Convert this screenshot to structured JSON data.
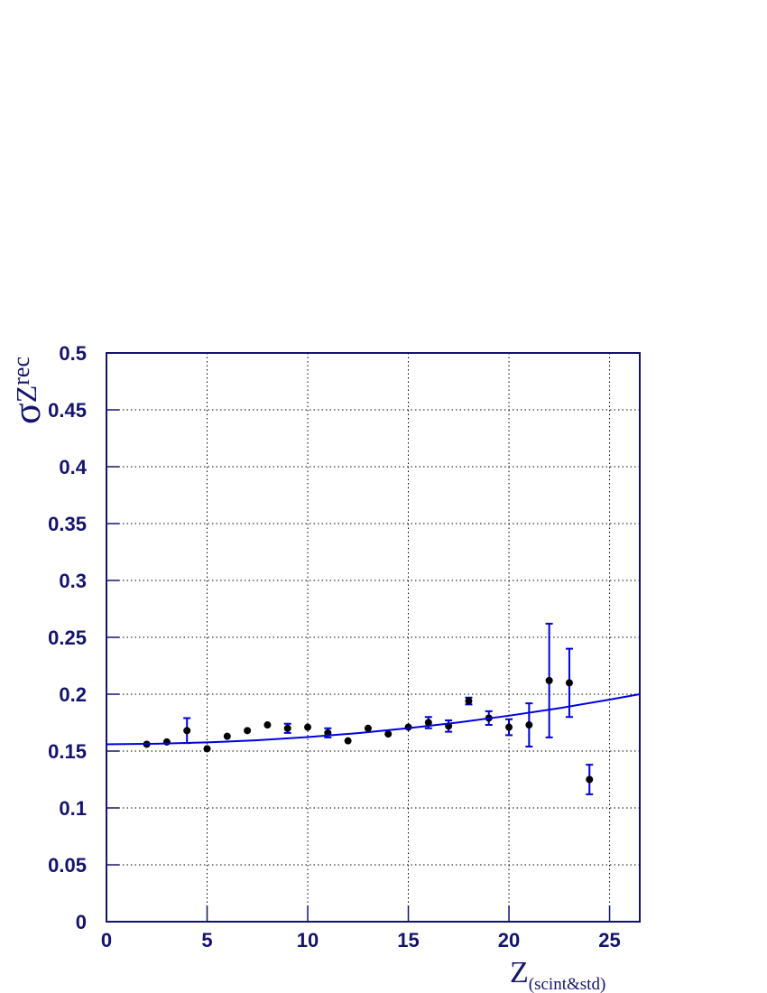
{
  "chart_data": {
    "type": "scatter",
    "xlabel": "Z",
    "xlabel_sub": "(scint&std)",
    "ylabel": "σ",
    "ylabel_sub": "Z",
    "ylabel_subsub": "rec",
    "xlim": [
      0,
      26.5
    ],
    "xticks": [
      0,
      5,
      10,
      15,
      20,
      25
    ],
    "ylim": [
      0,
      0.5
    ],
    "yticks": [
      0,
      0.05,
      0.1,
      0.15,
      0.2,
      0.25,
      0.3,
      0.35,
      0.4,
      0.45,
      0.5
    ],
    "grid": true,
    "series": [
      {
        "type": "errorbar",
        "color": "#000000",
        "error_color": "#0000dd",
        "x": [
          2,
          3,
          4,
          5,
          6,
          7,
          8,
          9,
          10,
          11,
          12,
          13,
          14,
          15,
          16,
          17,
          18,
          19,
          20,
          21,
          22,
          23,
          24
        ],
        "values": [
          0.156,
          0.158,
          0.168,
          0.152,
          0.163,
          0.168,
          0.173,
          0.17,
          0.171,
          0.166,
          0.159,
          0.17,
          0.165,
          0.171,
          0.175,
          0.172,
          0.194,
          0.179,
          0.171,
          0.173,
          0.212,
          0.21,
          0.125
        ],
        "errors": [
          0,
          0,
          0.011,
          0,
          0,
          0,
          0,
          0.004,
          0,
          0.004,
          0,
          0,
          0,
          0,
          0.005,
          0.005,
          0.003,
          0.006,
          0.007,
          0.019,
          0.05,
          0.03,
          0.013
        ]
      },
      {
        "type": "line",
        "color": "#0000dd",
        "x": [
          0,
          2.5,
          5,
          7.5,
          10,
          12.5,
          15,
          17.5,
          20,
          22.5,
          25,
          26.5
        ],
        "values": [
          0.156,
          0.1564,
          0.1576,
          0.1595,
          0.1623,
          0.1658,
          0.1701,
          0.1752,
          0.1811,
          0.1877,
          0.1952,
          0.2
        ]
      }
    ]
  }
}
